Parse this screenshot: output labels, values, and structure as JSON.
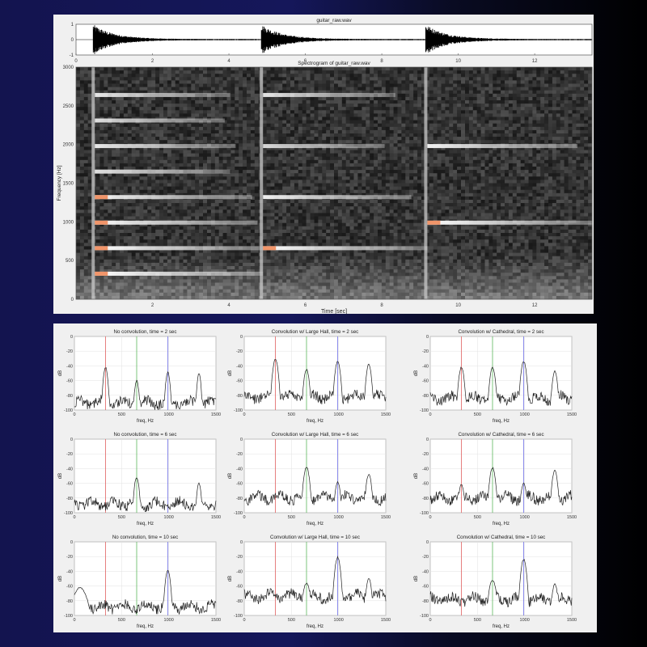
{
  "colors": {
    "red_line": "#e06060",
    "green_line": "#5cb85c",
    "blue_line": "#6f6fe8",
    "trace": "#222222",
    "hot": "#f08a5a"
  },
  "chart_data": [
    {
      "type": "line",
      "title": "guitar_raw.wav",
      "xlim": [
        0,
        13.5
      ],
      "ylim": [
        -1,
        1
      ],
      "xticks": [
        0,
        2,
        4,
        6,
        8,
        10,
        12
      ],
      "yticks": [
        -1,
        0,
        1
      ],
      "note_onsets_sec": [
        0.45,
        4.85,
        9.15
      ]
    },
    {
      "type": "heatmap",
      "title": "Spectrogram of guitar_raw.wav",
      "xlabel": "Time [sec]",
      "ylabel": "Frequency [Hz]",
      "xlim": [
        0,
        13.5
      ],
      "ylim": [
        0,
        3000
      ],
      "xticks": [
        2,
        4,
        6,
        8,
        10,
        12
      ],
      "yticks": [
        0,
        500,
        1000,
        1500,
        2000,
        2500,
        3000
      ],
      "notes": [
        {
          "start": 0.45,
          "end": 4.85,
          "harmonics": [
            330,
            660,
            990,
            1320,
            1650,
            1980,
            2310,
            2640
          ],
          "strength": [
            1,
            1,
            0.95,
            0.9,
            0.7,
            0.75,
            0.65,
            0.7
          ]
        },
        {
          "start": 4.85,
          "end": 9.15,
          "harmonics": [
            660,
            1320,
            1980,
            2640
          ],
          "strength": [
            1,
            0.85,
            0.6,
            0.7
          ]
        },
        {
          "start": 9.15,
          "end": 13.5,
          "harmonics": [
            990,
            1980
          ],
          "strength": [
            1,
            0.85
          ]
        }
      ]
    },
    {
      "type": "line",
      "title": "No convolution, time = 2 sec",
      "xlabel": "freq, Hz",
      "ylabel": "dB",
      "xlim": [
        0,
        1500
      ],
      "ylim": [
        -100,
        0
      ],
      "xticks": [
        0,
        500,
        1000,
        1500
      ],
      "yticks": [
        0,
        -20,
        -40,
        -60,
        -80,
        -100
      ],
      "vlines": [
        330,
        660,
        990
      ],
      "floor": -90,
      "peaks": [
        {
          "f": 330,
          "db": -42,
          "w": 25
        },
        {
          "f": 660,
          "db": -60,
          "w": 25
        },
        {
          "f": 990,
          "db": -49,
          "w": 25
        },
        {
          "f": 1320,
          "db": -50,
          "w": 22
        }
      ]
    },
    {
      "type": "line",
      "title": "Convolution w/ Large Hall, time = 2 sec",
      "xlabel": "freq, Hz",
      "ylabel": "dB",
      "xlim": [
        0,
        1500
      ],
      "ylim": [
        -100,
        0
      ],
      "xticks": [
        0,
        500,
        1000,
        1500
      ],
      "yticks": [
        0,
        -20,
        -40,
        -60,
        -80,
        -100
      ],
      "vlines": [
        330,
        660,
        990
      ],
      "floor": -82,
      "peaks": [
        {
          "f": 330,
          "db": -31,
          "w": 30
        },
        {
          "f": 660,
          "db": -45,
          "w": 30
        },
        {
          "f": 990,
          "db": -34,
          "w": 30
        },
        {
          "f": 1320,
          "db": -38,
          "w": 28
        }
      ]
    },
    {
      "type": "line",
      "title": "Convolution w/ Cathedral, time = 2 sec",
      "xlabel": "freq, Hz",
      "ylabel": "dB",
      "xlim": [
        0,
        1500
      ],
      "ylim": [
        -100,
        0
      ],
      "xticks": [
        0,
        500,
        1000,
        1500
      ],
      "yticks": [
        0,
        -20,
        -40,
        -60,
        -80,
        -100
      ],
      "vlines": [
        330,
        660,
        990
      ],
      "floor": -84,
      "peaks": [
        {
          "f": 330,
          "db": -42,
          "w": 30
        },
        {
          "f": 660,
          "db": -42,
          "w": 30
        },
        {
          "f": 990,
          "db": -34,
          "w": 30
        },
        {
          "f": 1320,
          "db": -47,
          "w": 28
        }
      ]
    },
    {
      "type": "line",
      "title": "No convolution, time = 6 sec",
      "xlabel": "freq, Hz",
      "ylabel": "dB",
      "xlim": [
        0,
        1500
      ],
      "ylim": [
        -100,
        0
      ],
      "xticks": [
        0,
        500,
        1000,
        1500
      ],
      "yticks": [
        0,
        -20,
        -40,
        -60,
        -80,
        -100
      ],
      "vlines": [
        330,
        660,
        990
      ],
      "floor": -88,
      "peaks": [
        {
          "f": 660,
          "db": -52,
          "w": 28
        },
        {
          "f": 1320,
          "db": -60,
          "w": 25
        }
      ]
    },
    {
      "type": "line",
      "title": "Convolution w/ Large Hall, time = 6 sec",
      "xlabel": "freq, Hz",
      "ylabel": "dB",
      "xlim": [
        0,
        1500
      ],
      "ylim": [
        -100,
        0
      ],
      "xticks": [
        0,
        500,
        1000,
        1500
      ],
      "yticks": [
        0,
        -20,
        -40,
        -60,
        -80,
        -100
      ],
      "vlines": [
        330,
        660,
        990
      ],
      "floor": -80,
      "peaks": [
        {
          "f": 660,
          "db": -38,
          "w": 32
        },
        {
          "f": 990,
          "db": -58,
          "w": 30
        },
        {
          "f": 1320,
          "db": -48,
          "w": 30
        }
      ]
    },
    {
      "type": "line",
      "title": "Convolution w/ Cathedral, time = 6 sec",
      "xlabel": "freq, Hz",
      "ylabel": "dB",
      "xlim": [
        0,
        1500
      ],
      "ylim": [
        -100,
        0
      ],
      "xticks": [
        0,
        500,
        1000,
        1500
      ],
      "yticks": [
        0,
        -20,
        -40,
        -60,
        -80,
        -100
      ],
      "vlines": [
        330,
        660,
        990
      ],
      "floor": -80,
      "peaks": [
        {
          "f": 330,
          "db": -62,
          "w": 30
        },
        {
          "f": 660,
          "db": -39,
          "w": 32
        },
        {
          "f": 990,
          "db": -60,
          "w": 30
        },
        {
          "f": 1320,
          "db": -43,
          "w": 30
        }
      ]
    },
    {
      "type": "line",
      "title": "No convolution, time = 10 sec",
      "xlabel": "freq, Hz",
      "ylabel": "dB",
      "xlim": [
        0,
        1500
      ],
      "ylim": [
        -100,
        0
      ],
      "xticks": [
        0,
        500,
        1000,
        1500
      ],
      "yticks": [
        0,
        -20,
        -40,
        -60,
        -80,
        -100
      ],
      "vlines": [
        330,
        660,
        990
      ],
      "floor": -88,
      "peaks": [
        {
          "f": 990,
          "db": -38,
          "w": 28
        },
        {
          "f": 60,
          "db": -62,
          "w": 80
        }
      ]
    },
    {
      "type": "line",
      "title": "Convolution w/ Large Hall, time = 10 sec",
      "xlabel": "freq, Hz",
      "ylabel": "dB",
      "xlim": [
        0,
        1500
      ],
      "ylim": [
        -100,
        0
      ],
      "xticks": [
        0,
        500,
        1000,
        1500
      ],
      "yticks": [
        0,
        -20,
        -40,
        -60,
        -80,
        -100
      ],
      "vlines": [
        330,
        660,
        990
      ],
      "floor": -74,
      "peaks": [
        {
          "f": 990,
          "db": -21,
          "w": 30
        },
        {
          "f": 660,
          "db": -56,
          "w": 40
        },
        {
          "f": 1320,
          "db": -50,
          "w": 30
        }
      ]
    },
    {
      "type": "line",
      "title": "Convolution w/ Cathedral, time = 10 sec",
      "xlabel": "freq, Hz",
      "ylabel": "dB",
      "xlim": [
        0,
        1500
      ],
      "ylim": [
        -100,
        0
      ],
      "xticks": [
        0,
        500,
        1000,
        1500
      ],
      "yticks": [
        0,
        -20,
        -40,
        -60,
        -80,
        -100
      ],
      "vlines": [
        330,
        660,
        990
      ],
      "floor": -78,
      "peaks": [
        {
          "f": 990,
          "db": -24,
          "w": 30
        },
        {
          "f": 660,
          "db": -52,
          "w": 40
        },
        {
          "f": 1320,
          "db": -57,
          "w": 30
        }
      ]
    }
  ]
}
